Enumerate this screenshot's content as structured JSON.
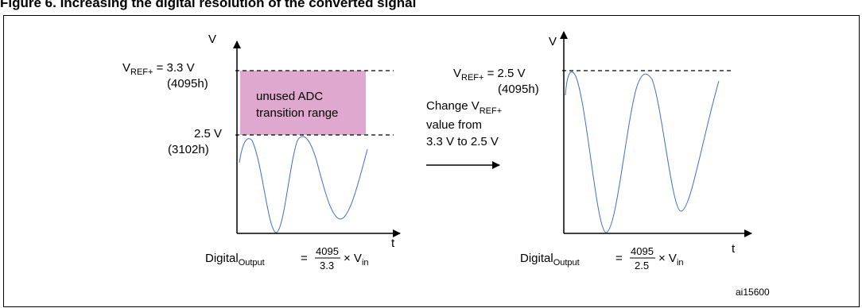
{
  "figure_title": "Figure 6. Increasing the digital resolution of the converted signal",
  "id_tag": "ai15600",
  "left_graph": {
    "axis_y": "V",
    "axis_x": "t",
    "top_ref_main": "V",
    "top_ref_sub": "REF+",
    "top_ref_value": " = 3.3 V",
    "top_ref_code": "(4095h)",
    "lower_level": "2.5 V",
    "lower_code": "(3102h)",
    "unused_line1": "unused ADC",
    "unused_line2": "transition range",
    "formula_prefix": "Digital",
    "formula_sub": "Output",
    "formula_eq": "=",
    "formula_num": "4095",
    "formula_den": "3.3",
    "formula_times": "× V",
    "formula_vin_sub": "in"
  },
  "middle_note": {
    "line1_main": "Change V",
    "line1_sub": "REF+",
    "line2": "value from",
    "line3": "3.3 V to 2.5 V"
  },
  "right_graph": {
    "axis_y": "V",
    "axis_x": "t",
    "top_ref_main": "V",
    "top_ref_sub": "REF+",
    "top_ref_value": " = 2.5 V",
    "top_ref_code": "(4095h)",
    "formula_prefix": "Digital",
    "formula_sub": "Output",
    "formula_eq": "=",
    "formula_num": "4095",
    "formula_den": "2.5",
    "formula_times": "× V",
    "formula_vin_sub": "in"
  },
  "colors": {
    "unused_fill": "#dfa8cf",
    "wave_stroke": "#3d6fc9",
    "line": "#000000"
  }
}
